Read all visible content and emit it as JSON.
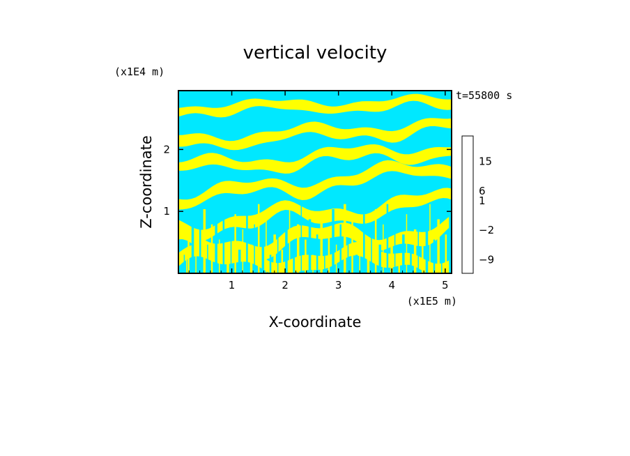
{
  "chart_data": {
    "type": "heatmap",
    "title": "vertical velocity",
    "xlabel": "X-coordinate",
    "ylabel": "Z-coordinate",
    "x_unit": "(x1E5 m)",
    "y_unit": "(x1E4 m)",
    "time_label": "t=55800 s",
    "xlim": [
      0,
      5.12
    ],
    "ylim": [
      0,
      2.95
    ],
    "x_ticks": [
      "1",
      "2",
      "3",
      "4",
      "5"
    ],
    "y_ticks": [
      "1",
      "2"
    ],
    "colorbar": {
      "labels": [
        "15",
        "6",
        "1",
        "−2",
        "−9"
      ],
      "levels": [
        15,
        6,
        1,
        -2,
        -9
      ],
      "colors": [
        "#fde8e8",
        "#f7c0bb",
        "#f07b72",
        "#e8201b",
        "#ff6a00",
        "#e8a000",
        "#ffff00",
        "#00e5ff",
        "#0080ff",
        "#001ea0",
        "#5a00a0",
        "#8f00b0",
        "#c000a8",
        "#e000a0"
      ]
    },
    "field_colors": {
      "positive": "#ffff00",
      "negative": "#00e8ff"
    },
    "field_description": "Banded contour field of vertical velocity: alternating yellow (upward) and cyan (downward) layers tilted across the domain."
  }
}
